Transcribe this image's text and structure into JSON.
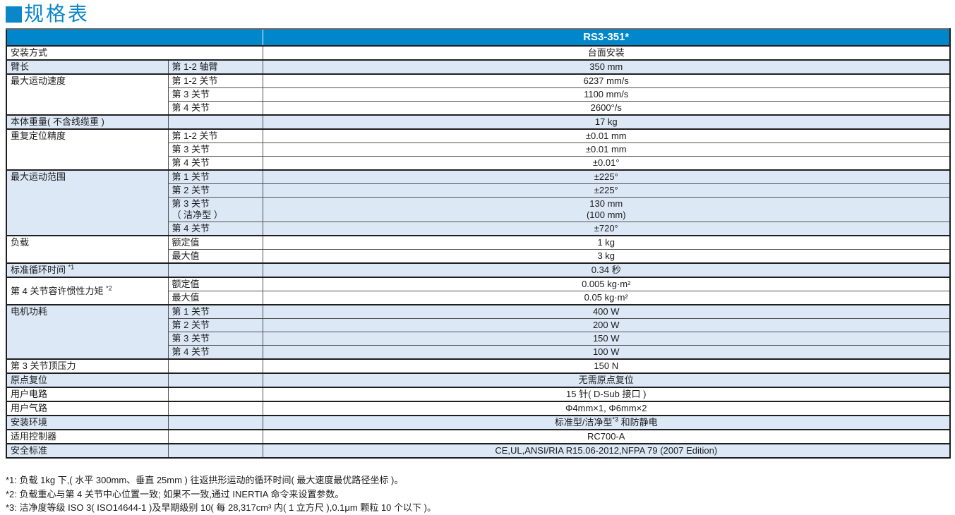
{
  "page": {
    "title": "规格表"
  },
  "colors": {
    "accent": "#0b86c9",
    "header_blue": "#0086cb",
    "row_blue": "#dce8f5",
    "border_dark": "#1f1f21"
  },
  "table": {
    "product": "RS3-351*",
    "sections": [
      {
        "label": "安装方式",
        "merge_label": true,
        "shaded": false,
        "rows": [
          {
            "sub": "",
            "value": "台面安装"
          }
        ]
      },
      {
        "label": "臂长",
        "shaded": true,
        "rows": [
          {
            "sub": "第 1-2 轴臂",
            "value": "350 mm"
          }
        ]
      },
      {
        "label": "最大运动速度",
        "shaded": false,
        "rows": [
          {
            "sub": "第 1-2 关节",
            "value": "6237 mm/s"
          },
          {
            "sub": "第 3 关节",
            "value": "1100 mm/s"
          },
          {
            "sub": "第 4 关节",
            "value": "2600°/s"
          }
        ]
      },
      {
        "label": "本体重量( 不含线缆重 )",
        "shaded": true,
        "rows": [
          {
            "sub": "",
            "value": "17 kg"
          }
        ]
      },
      {
        "label": "重复定位精度",
        "shaded": false,
        "rows": [
          {
            "sub": "第 1-2 关节",
            "value": "±0.01 mm"
          },
          {
            "sub": "第 3 关节",
            "value": "±0.01 mm"
          },
          {
            "sub": "第 4 关节",
            "value": "±0.01°"
          }
        ]
      },
      {
        "label": "最大运动范围",
        "shaded": true,
        "rows": [
          {
            "sub": "第 1 关节",
            "value": "±225°"
          },
          {
            "sub": "第 2 关节",
            "value": "±225°"
          },
          {
            "sub": "第 3 关节\n（ 洁净型 ）",
            "value": "130 mm\n(100 mm)"
          },
          {
            "sub": "第 4 关节",
            "value": "±720°"
          }
        ]
      },
      {
        "label": "负载",
        "shaded": false,
        "rows": [
          {
            "sub": "额定值",
            "value": "1 kg"
          },
          {
            "sub": "最大值",
            "value": "3 kg"
          }
        ]
      },
      {
        "label": "标准循环时间 ",
        "label_sup": "*1",
        "shaded": true,
        "rows": [
          {
            "sub": "",
            "value": "0.34 秒"
          }
        ]
      },
      {
        "label": "第 4 关节容许惯性力矩 ",
        "label_sup": "*2",
        "label_valign": "middle",
        "shaded": false,
        "rows": [
          {
            "sub": "额定值",
            "value": "0.005 kg·m²"
          },
          {
            "sub": "最大值",
            "value": "0.05 kg·m²"
          }
        ]
      },
      {
        "label": "电机功耗",
        "shaded": true,
        "rows": [
          {
            "sub": "第 1 关节",
            "value": "400 W"
          },
          {
            "sub": "第 2 关节",
            "value": "200 W"
          },
          {
            "sub": "第 3 关节",
            "value": "150 W"
          },
          {
            "sub": "第 4 关节",
            "value": "100 W"
          }
        ]
      },
      {
        "label": "第 3 关节顶压力",
        "shaded": false,
        "rows": [
          {
            "sub": "",
            "value": "150 N"
          }
        ]
      },
      {
        "label": "原点复位",
        "shaded": true,
        "rows": [
          {
            "sub": "",
            "value": "无需原点复位"
          }
        ]
      },
      {
        "label": "用户电路",
        "shaded": false,
        "rows": [
          {
            "sub": "",
            "value": "15 针( D-Sub 接口 )"
          }
        ]
      },
      {
        "label": "用户气路",
        "shaded": false,
        "rows": [
          {
            "sub": "",
            "value": "Φ4mm×1, Φ6mm×2"
          }
        ]
      },
      {
        "label": "安装环境",
        "shaded": true,
        "rows": [
          {
            "sub": "",
            "value": {
              "text": "标准型/洁净型",
              "sup": "*3",
              "tail": " 和防静电"
            }
          }
        ]
      },
      {
        "label": "适用控制器",
        "shaded": false,
        "rows": [
          {
            "sub": "",
            "value": "RC700-A"
          }
        ]
      },
      {
        "label": "安全标准",
        "shaded": true,
        "rows": [
          {
            "sub": "",
            "value": "CE,UL,ANSI/RIA R15.06-2012,NFPA 79 (2007 Edition)"
          }
        ]
      }
    ]
  },
  "footnotes": [
    "*1: 负载 1kg 下,( 水平 300mm、垂直 25mm ) 往返拱形运动的循环时间( 最大速度最优路径坐标 )。",
    "*2: 负载重心与第 4 关节中心位置一致; 如果不一致,通过 INERTIA 命令来设置参数。",
    "*3: 洁净度等级 ISO 3( ISO14644-1 )及早期级别 10( 每 28,317cm³ 内( 1 立方尺 ),0.1μm 颗粒 10 个以下 )。"
  ]
}
